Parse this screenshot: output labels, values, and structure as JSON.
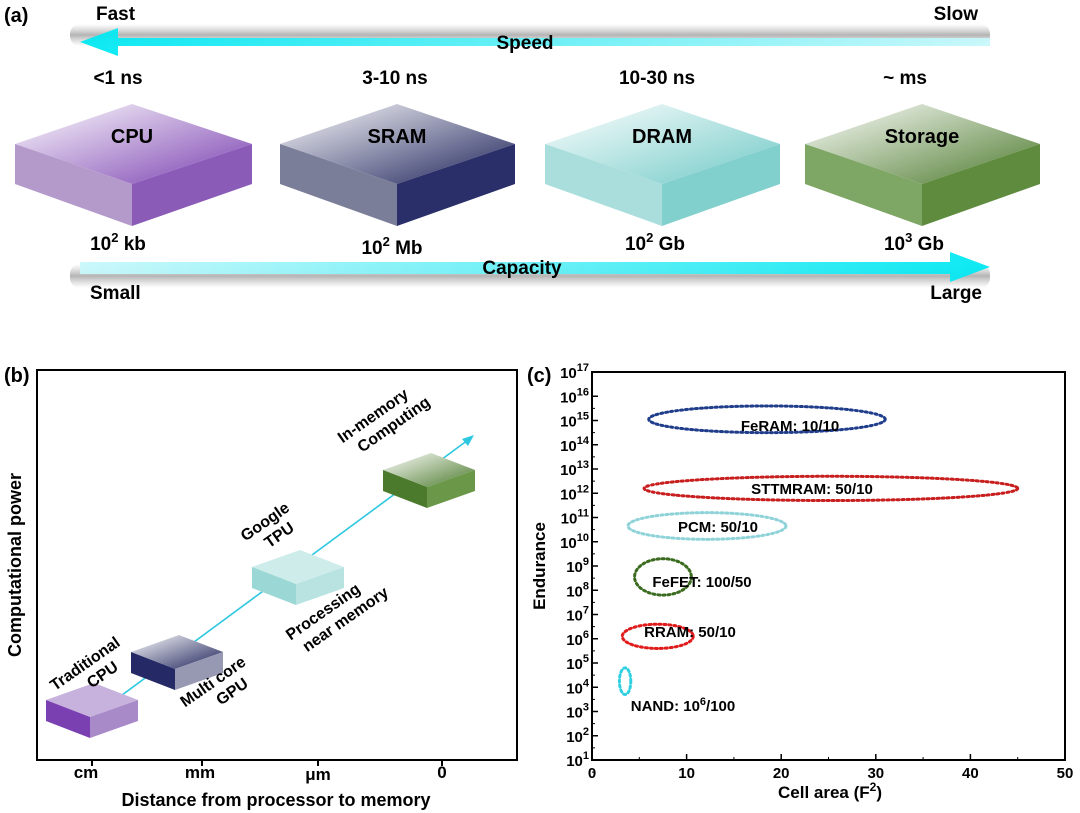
{
  "panel_a": {
    "label": "(a)",
    "speed": {
      "fast": "Fast",
      "slow": "Slow",
      "title": "Speed"
    },
    "latencies": [
      "<1 ns",
      "3-10 ns",
      "10-30 ns",
      "~ ms"
    ],
    "blocks": [
      {
        "name": "CPU",
        "capacity_base": "10",
        "capacity_exp": "2",
        "capacity_unit": " kb",
        "color": "#7a3fb0"
      },
      {
        "name": "SRAM",
        "capacity_base": "10",
        "capacity_exp": "2",
        "capacity_unit": " Mb",
        "color": "#1c2159"
      },
      {
        "name": "DRAM",
        "capacity_base": "10",
        "capacity_exp": "2",
        "capacity_unit": " Gb",
        "color": "#6fc9c6"
      },
      {
        "name": "Storage",
        "capacity_base": "10",
        "capacity_exp": "3",
        "capacity_unit": " Gb",
        "color": "#4c7a2c"
      }
    ],
    "capacity": {
      "title": "Capacity",
      "small": "Small",
      "large": "Large"
    },
    "arrow_color": "#00e5f0"
  },
  "panel_b": {
    "label": "(b)",
    "ylabel": "Computational power",
    "xlabel": "Distance from processor to memory",
    "xticks": [
      "cm",
      "mm",
      "μm",
      "0"
    ],
    "items": [
      {
        "line1": "Traditional",
        "line2": "CPU",
        "color": "#7a3fb0"
      },
      {
        "line1": "Multi core",
        "line2": "GPU",
        "color": "#1c2159"
      },
      {
        "line1": "Google",
        "line2": "TPU",
        "color": "#6fc9c6"
      },
      {
        "line1": "Processing",
        "line2": "near memory",
        "color": "#6fc9c6"
      },
      {
        "line1": "In-memory",
        "line2": "Computing",
        "color": "#4c7a2c"
      }
    ]
  },
  "panel_c": {
    "label": "(c)",
    "chart_data": {
      "type": "scatter",
      "xlabel_base": "Cell area (F",
      "xlabel_exp": "2",
      "xlabel_end": ")",
      "ylabel": "Endurance",
      "xlim": [
        0,
        50
      ],
      "ylim_log10": [
        1,
        17
      ],
      "xticks": [
        "0",
        "10",
        "20",
        "30",
        "40",
        "50"
      ],
      "yticks_log10": [
        1,
        2,
        3,
        4,
        5,
        6,
        7,
        8,
        9,
        10,
        11,
        12,
        13,
        14,
        15,
        16,
        17
      ],
      "ytick_base": "10",
      "series": [
        {
          "name": "FeRAM",
          "label": "FeRAM: 10/10",
          "x_range": [
            6,
            31
          ],
          "log10_range": [
            14.5,
            15.6
          ],
          "color": "#1f3d8a"
        },
        {
          "name": "STTMRAM",
          "label": "STTMRAM: 50/10",
          "x_range": [
            5.5,
            45
          ],
          "log10_range": [
            11.7,
            12.7
          ],
          "color": "#c81e1e"
        },
        {
          "name": "PCM",
          "label": "PCM: 50/10",
          "x_range": [
            3.8,
            20.5
          ],
          "log10_range": [
            10.1,
            11.2
          ],
          "color": "#8fd3d9"
        },
        {
          "name": "FeFET",
          "label": "FeFET: 100/50",
          "x_range": [
            4.5,
            10.5
          ],
          "log10_range": [
            7.8,
            9.3
          ],
          "color": "#3a6b1e"
        },
        {
          "name": "RRAM",
          "label": "RRAM: 50/10",
          "x_range": [
            3.2,
            10.7
          ],
          "log10_range": [
            5.6,
            6.6
          ],
          "color": "#e01b1b"
        },
        {
          "name": "NAND",
          "label_base": "NAND: 10",
          "label_exp": "6",
          "label_end": "/100",
          "x_range": [
            2.9,
            4.1
          ],
          "log10_range": [
            3.7,
            4.8
          ],
          "color": "#30d0e0"
        }
      ]
    }
  }
}
